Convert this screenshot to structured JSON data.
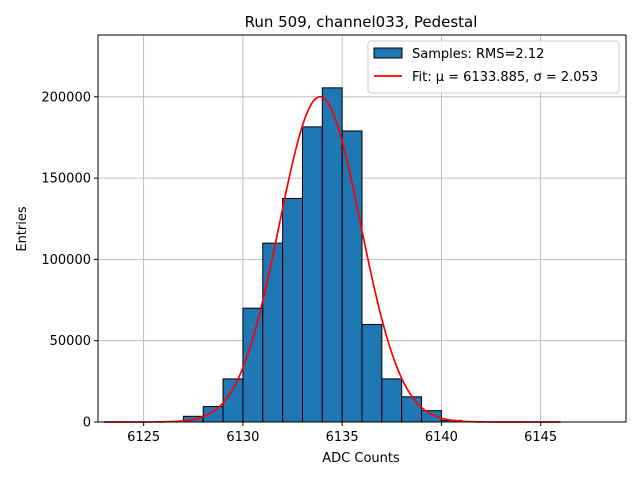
{
  "chart_data": {
    "type": "bar",
    "title": "Run 509, channel033, Pedestal",
    "xlabel": "ADC Counts",
    "ylabel": "Entries",
    "xlim": [
      6122.7,
      6149.3
    ],
    "ylim": [
      0,
      238000
    ],
    "grid": true,
    "legend_position": "top-right",
    "xticks": [
      6125,
      6130,
      6135,
      6140,
      6145
    ],
    "xtick_labels": [
      "6125",
      "6130",
      "6135",
      "6140",
      "6145"
    ],
    "yticks": [
      0,
      50000,
      100000,
      150000,
      200000
    ],
    "ytick_labels": [
      "0",
      "50000",
      "100000",
      "150000",
      "200000"
    ],
    "histogram": {
      "name": "Samples: RMS=2.12",
      "color": "#1f77b4",
      "edge_color": "#000000",
      "bins": [
        {
          "x0": 6127,
          "x1": 6128,
          "value": 3500
        },
        {
          "x0": 6128,
          "x1": 6129,
          "value": 9500
        },
        {
          "x0": 6129,
          "x1": 6130,
          "value": 26500
        },
        {
          "x0": 6130,
          "x1": 6131,
          "value": 70000
        },
        {
          "x0": 6131,
          "x1": 6132,
          "value": 110000
        },
        {
          "x0": 6132,
          "x1": 6133,
          "value": 137500
        },
        {
          "x0": 6133,
          "x1": 6134,
          "value": 181500
        },
        {
          "x0": 6134,
          "x1": 6135,
          "value": 205500
        },
        {
          "x0": 6135,
          "x1": 6136,
          "value": 179000
        },
        {
          "x0": 6136,
          "x1": 6137,
          "value": 60000
        },
        {
          "x0": 6137,
          "x1": 6138,
          "value": 26500
        },
        {
          "x0": 6138,
          "x1": 6139,
          "value": 15500
        },
        {
          "x0": 6139,
          "x1": 6140,
          "value": 7000
        },
        {
          "x0": 6140,
          "x1": 6141,
          "value": 1000
        }
      ]
    },
    "fit": {
      "name": "Fit: μ = 6133.885, σ = 2.053",
      "color": "#ff0000",
      "mu": 6133.885,
      "sigma": 2.053,
      "amplitude": 200000,
      "x_range": [
        6123,
        6146
      ]
    }
  }
}
